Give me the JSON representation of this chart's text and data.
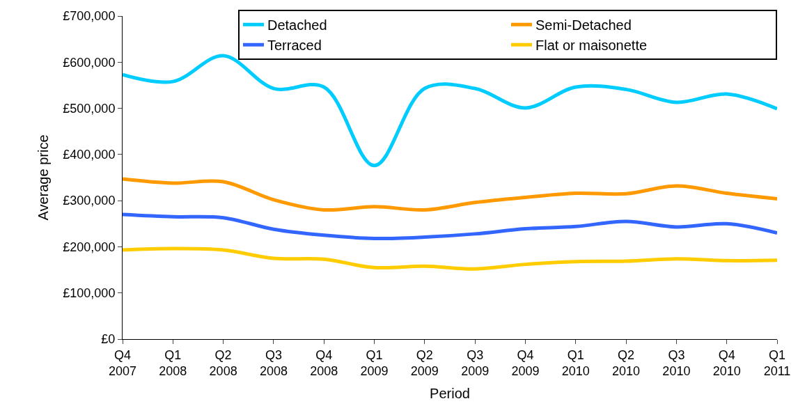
{
  "chart_data": {
    "type": "line",
    "xlabel": "Period",
    "ylabel": "Average price",
    "categories": [
      "Q4 2007",
      "Q1 2008",
      "Q2 2008",
      "Q3 2008",
      "Q4 2008",
      "Q1 2009",
      "Q2 2009",
      "Q3 2009",
      "Q4 2009",
      "Q1 2010",
      "Q2 2010",
      "Q3 2010",
      "Q4 2010",
      "Q1 2011"
    ],
    "series": [
      {
        "name": "Detached",
        "color": "#00ccff",
        "values": [
          573000,
          558000,
          614000,
          543000,
          546000,
          376000,
          543000,
          543000,
          501000,
          546000,
          541000,
          513000,
          531000,
          499000
        ]
      },
      {
        "name": "Semi-Detached",
        "color": "#ff9900",
        "values": [
          347000,
          338000,
          341000,
          302000,
          280000,
          287000,
          280000,
          296000,
          307000,
          316000,
          315000,
          332000,
          316000,
          304000
        ]
      },
      {
        "name": "Terraced",
        "color": "#3366ff",
        "values": [
          270000,
          265000,
          263000,
          238000,
          225000,
          218000,
          221000,
          228000,
          239000,
          244000,
          255000,
          243000,
          250000,
          230000
        ]
      },
      {
        "name": "Flat or maisonette",
        "color": "#ffcc00",
        "values": [
          193000,
          196000,
          193000,
          175000,
          173000,
          155000,
          158000,
          152000,
          162000,
          168000,
          169000,
          174000,
          170000,
          171000
        ]
      }
    ],
    "ylim": [
      0,
      700000
    ],
    "yticks": [
      {
        "value": 0,
        "label": "£0"
      },
      {
        "value": 100000,
        "label": "£100,000"
      },
      {
        "value": 200000,
        "label": "£200,000"
      },
      {
        "value": 300000,
        "label": "£300,000"
      },
      {
        "value": 400000,
        "label": "£400,000"
      },
      {
        "value": 500000,
        "label": "£500,000"
      },
      {
        "value": 600000,
        "label": "£600,000"
      },
      {
        "value": 700000,
        "label": "£700,000"
      }
    ],
    "grid": false,
    "legend": "top right",
    "marker": "none",
    "line_style": "solid"
  }
}
